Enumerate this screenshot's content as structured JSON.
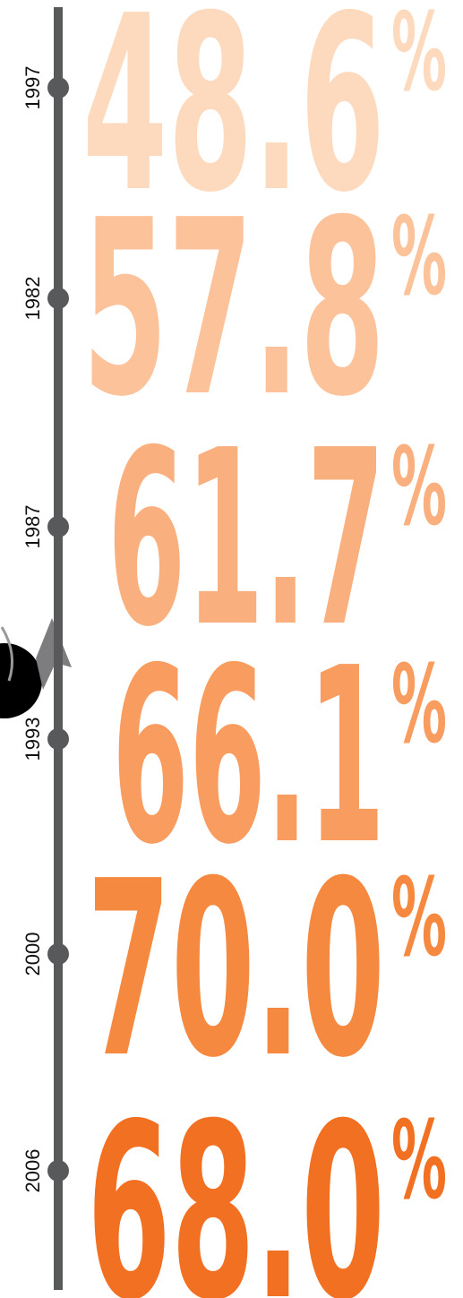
{
  "timeline": {
    "items": [
      {
        "year": "1997",
        "number": "48.6",
        "unit": "%",
        "color": "#fdd9bd"
      },
      {
        "year": "1982",
        "number": "57.8",
        "unit": "%",
        "color": "#fcc39b"
      },
      {
        "year": "1987",
        "number": "61.7",
        "unit": "%",
        "color": "#fab07e"
      },
      {
        "year": "1993",
        "number": "66.1",
        "unit": "%",
        "color": "#f89c60"
      },
      {
        "year": "2000",
        "number": "70.0",
        "unit": "%",
        "color": "#f68940"
      },
      {
        "year": "2006",
        "number": "68.0",
        "unit": "%",
        "color": "#f27022"
      }
    ]
  }
}
